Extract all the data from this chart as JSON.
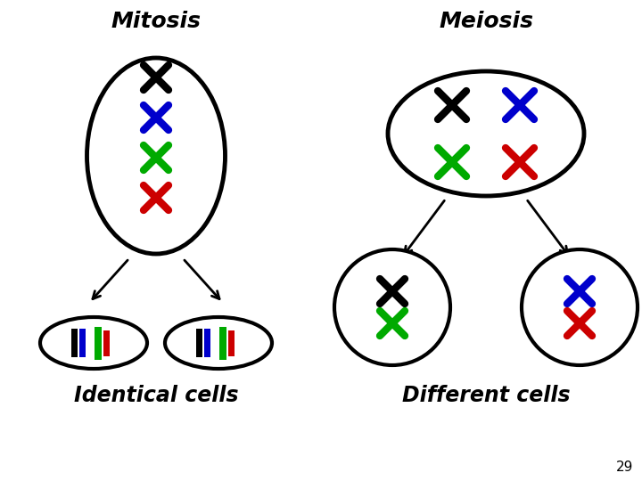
{
  "bg_color": "#ffffff",
  "mitosis_title": "Mitosis",
  "meiosis_title": "Meiosis",
  "identical_label": "Identical cells",
  "different_label": "Different cells",
  "page_number": "29",
  "title_fontsize": 18,
  "label_fontsize": 17,
  "colors": {
    "black": "#000000",
    "blue": "#0000cc",
    "green": "#00aa00",
    "red": "#cc0000"
  }
}
